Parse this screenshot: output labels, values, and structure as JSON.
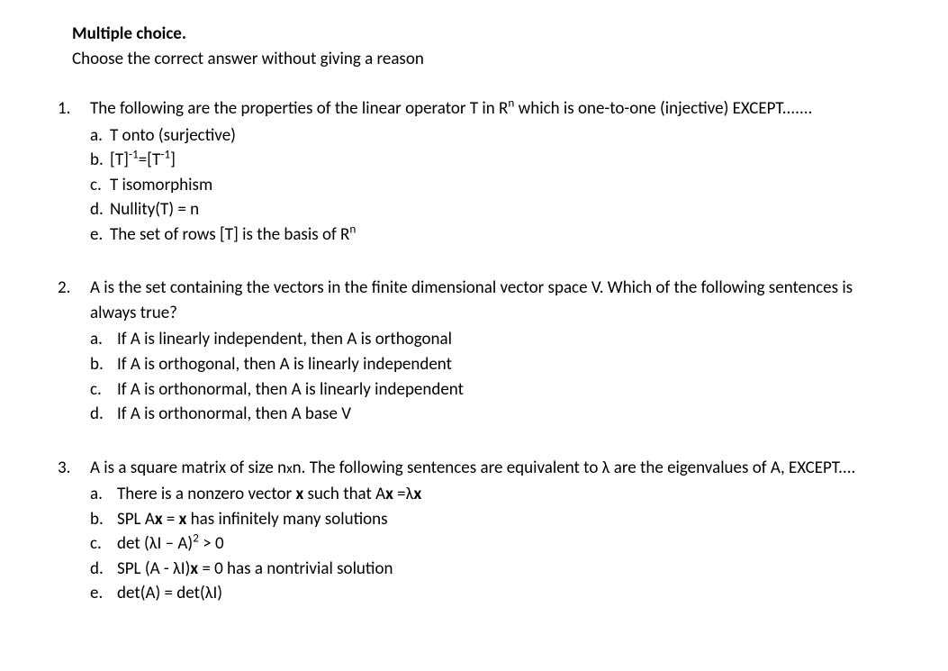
{
  "header": {
    "title": "Multiple choice.",
    "subtitle": "Choose the correct answer without giving a reason"
  },
  "questions": [
    {
      "num": "1.",
      "stem_html": "The following are the properties of the linear operator T in R<sup>n</sup> which is one-to-one (injective) EXCEPT.......",
      "letter_tight": true,
      "options": [
        {
          "letter": "a.",
          "html": "T onto (surjective)"
        },
        {
          "letter": "b.",
          "html": "[T]<sup>-1</sup>=[T<sup>-1</sup>]"
        },
        {
          "letter": "c.",
          "html": "T isomorphism"
        },
        {
          "letter": "d.",
          "html": "Nullity(T) = n"
        },
        {
          "letter": "e.",
          "html": "The set of rows [T] is the basis of R<sup>n</sup>"
        }
      ]
    },
    {
      "num": "2.",
      "stem_html": "A is the set containing the vectors in the finite dimensional vector space V. Which of the following sentences is always true?",
      "letter_tight": false,
      "options": [
        {
          "letter": "a.",
          "html": "If A is linearly independent, then A is orthogonal"
        },
        {
          "letter": "b.",
          "html": "If A is orthogonal, then A is linearly independent"
        },
        {
          "letter": "c.",
          "html": "If A is orthonormal, then A is linearly independent"
        },
        {
          "letter": "d.",
          "html": "If A is orthonormal, then A base V"
        }
      ]
    },
    {
      "num": "3.",
      "stem_html": "A is a square matrix of size n<span style=\"font-size:0.8em\">x</span>n. The following sentences are equivalent to λ are the eigenvalues of A, EXCEPT....",
      "letter_tight": false,
      "options": [
        {
          "letter": "a.",
          "html": "There is a nonzero vector <span class=\"bold\">x</span> such that A<span class=\"bold\">x</span> =λ<span class=\"bold\">x</span>"
        },
        {
          "letter": "b.",
          "html": "SPL A<span class=\"bold\">x</span> = <span class=\"bold\">x</span> has infinitely many solutions"
        },
        {
          "letter": "c.",
          "html": "det (λI – A)<sup>2</sup> > 0"
        },
        {
          "letter": "d.",
          "html": "SPL (A - λI)<span class=\"bold\">x</span> = 0 has a nontrivial solution"
        },
        {
          "letter": "e.",
          "html": "det(A) = det(λI)"
        }
      ]
    }
  ]
}
